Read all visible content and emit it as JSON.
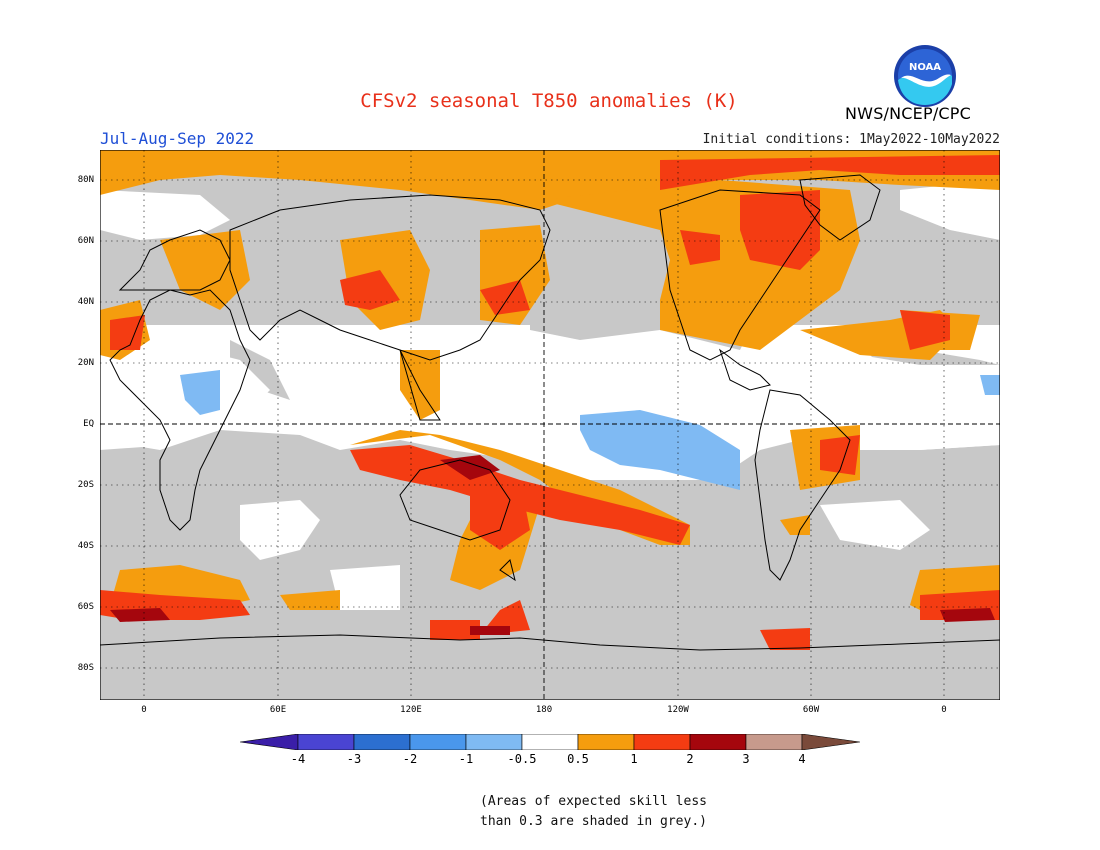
{
  "header": {
    "title": "CFSv2 seasonal T850 anomalies (K)",
    "season": "Jul-Aug-Sep 2022",
    "initial_conditions": "Initial conditions: 1May2022-10May2022",
    "agency": "NWS/NCEP/CPC",
    "logo_text": "NOAA"
  },
  "map": {
    "lat_labels": [
      "80N",
      "60N",
      "40N",
      "20N",
      "EQ",
      "20S",
      "40S",
      "60S",
      "80S"
    ],
    "lon_labels": [
      "0",
      "60E",
      "120E",
      "180",
      "120W",
      "60W",
      "0"
    ]
  },
  "colorbar": {
    "levels": [
      "-4",
      "-3",
      "-2",
      "-1",
      "-0.5",
      "0.5",
      "1",
      "2",
      "3",
      "4"
    ],
    "colors": [
      "#3a1ea8",
      "#4a44d2",
      "#2c6fd0",
      "#4a97ec",
      "#7fbaf3",
      "#ffffff",
      "#f59d0e",
      "#f43c12",
      "#a5060d",
      "#c79a8c",
      "#7a4a3a"
    ]
  },
  "footnote": {
    "line1": "(Areas of expected skill less",
    "line2": "than 0.3 are shaded in grey.)"
  },
  "colors": {
    "title": "#e8301a",
    "season": "#1f4fd6",
    "grey_skill": "#c8c8c8"
  }
}
